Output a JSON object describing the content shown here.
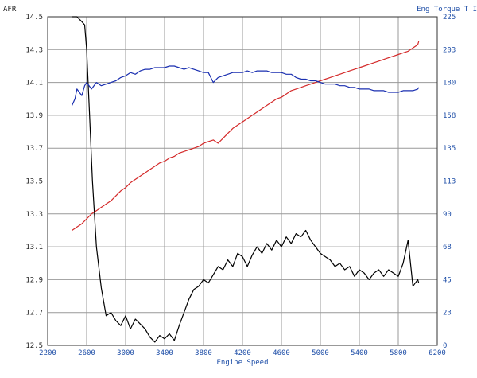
{
  "chart_data": {
    "type": "line",
    "xlabel": "Engine Speed",
    "ylabel_left": "AFR",
    "ylabel_right": "Eng Torque T I",
    "xlim": [
      2200,
      6200
    ],
    "ylim_left": [
      12.5,
      14.5
    ],
    "ylim_right": [
      0,
      225
    ],
    "grid": true,
    "x_ticks": [
      "2200",
      "2600",
      "3000",
      "3400",
      "3800",
      "4200",
      "4600",
      "5000",
      "5400",
      "5800",
      "6200"
    ],
    "y_left_ticks": [
      "12.5",
      "12.7",
      "12.9",
      "13.1",
      "13.3",
      "13.5",
      "13.7",
      "13.9",
      "14.1",
      "14.3",
      "14.5"
    ],
    "y_right_ticks": [
      "0",
      "23",
      "45",
      "68",
      "90",
      "113",
      "135",
      "158",
      "180",
      "203",
      "225"
    ],
    "series": [
      {
        "color": "#000000",
        "axis": "left",
        "x": [
          2450,
          2500,
          2550,
          2580,
          2600,
          2630,
          2660,
          2700,
          2750,
          2800,
          2850,
          2900,
          2950,
          3000,
          3050,
          3100,
          3150,
          3200,
          3250,
          3300,
          3350,
          3400,
          3450,
          3500,
          3550,
          3600,
          3650,
          3700,
          3750,
          3800,
          3850,
          3900,
          3950,
          4000,
          4050,
          4100,
          4150,
          4200,
          4250,
          4300,
          4350,
          4400,
          4450,
          4500,
          4550,
          4600,
          4650,
          4700,
          4750,
          4800,
          4850,
          4900,
          4950,
          5000,
          5050,
          5100,
          5150,
          5200,
          5250,
          5300,
          5350,
          5400,
          5450,
          5500,
          5550,
          5600,
          5650,
          5700,
          5750,
          5800,
          5850,
          5900,
          5950,
          6000,
          6010
        ],
        "y": [
          14.5,
          14.5,
          14.47,
          14.45,
          14.3,
          13.9,
          13.5,
          13.1,
          12.85,
          12.68,
          12.7,
          12.65,
          12.62,
          12.68,
          12.6,
          12.66,
          12.63,
          12.6,
          12.55,
          12.52,
          12.56,
          12.54,
          12.57,
          12.53,
          12.62,
          12.7,
          12.78,
          12.84,
          12.86,
          12.9,
          12.88,
          12.93,
          12.98,
          12.96,
          13.02,
          12.98,
          13.06,
          13.04,
          12.98,
          13.05,
          13.1,
          13.06,
          13.12,
          13.08,
          13.14,
          13.1,
          13.16,
          13.12,
          13.18,
          13.16,
          13.2,
          13.14,
          13.1,
          13.06,
          13.04,
          13.02,
          12.98,
          13.0,
          12.96,
          12.98,
          12.92,
          12.96,
          12.94,
          12.9,
          12.94,
          12.96,
          12.92,
          12.96,
          12.94,
          12.92,
          13.0,
          13.14,
          12.86,
          12.9,
          12.88
        ]
      },
      {
        "color": "#d42a2a",
        "axis": "left",
        "x": [
          2450,
          2500,
          2550,
          2600,
          2650,
          2700,
          2750,
          2800,
          2850,
          2900,
          2950,
          3000,
          3050,
          3100,
          3150,
          3200,
          3250,
          3300,
          3350,
          3400,
          3450,
          3500,
          3550,
          3600,
          3650,
          3700,
          3750,
          3800,
          3850,
          3900,
          3950,
          4000,
          4050,
          4100,
          4150,
          4200,
          4250,
          4300,
          4350,
          4400,
          4450,
          4500,
          4550,
          4600,
          4650,
          4700,
          4750,
          4800,
          4850,
          4900,
          4950,
          5000,
          5050,
          5100,
          5150,
          5200,
          5250,
          5300,
          5350,
          5400,
          5450,
          5500,
          5550,
          5600,
          5650,
          5700,
          5750,
          5800,
          5850,
          5900,
          5950,
          6000,
          6010
        ],
        "y": [
          13.2,
          13.22,
          13.24,
          13.27,
          13.3,
          13.32,
          13.34,
          13.36,
          13.38,
          13.41,
          13.44,
          13.46,
          13.49,
          13.51,
          13.53,
          13.55,
          13.57,
          13.59,
          13.61,
          13.62,
          13.64,
          13.65,
          13.67,
          13.68,
          13.69,
          13.7,
          13.71,
          13.73,
          13.74,
          13.75,
          13.73,
          13.76,
          13.79,
          13.82,
          13.84,
          13.86,
          13.88,
          13.9,
          13.92,
          13.94,
          13.96,
          13.98,
          14.0,
          14.01,
          14.03,
          14.05,
          14.06,
          14.07,
          14.08,
          14.09,
          14.1,
          14.11,
          14.12,
          14.13,
          14.14,
          14.15,
          14.16,
          14.17,
          14.18,
          14.19,
          14.2,
          14.21,
          14.22,
          14.23,
          14.24,
          14.25,
          14.26,
          14.27,
          14.28,
          14.29,
          14.31,
          14.33,
          14.35
        ]
      },
      {
        "color": "#1a2fb0",
        "axis": "left",
        "x": [
          2450,
          2480,
          2500,
          2550,
          2580,
          2600,
          2650,
          2700,
          2750,
          2800,
          2850,
          2900,
          2950,
          3000,
          3050,
          3100,
          3150,
          3200,
          3250,
          3300,
          3350,
          3400,
          3450,
          3500,
          3550,
          3600,
          3650,
          3700,
          3750,
          3800,
          3850,
          3900,
          3950,
          4000,
          4050,
          4100,
          4150,
          4200,
          4250,
          4300,
          4350,
          4400,
          4450,
          4500,
          4550,
          4600,
          4650,
          4700,
          4750,
          4800,
          4850,
          4900,
          4950,
          5000,
          5050,
          5100,
          5150,
          5200,
          5250,
          5300,
          5350,
          5400,
          5450,
          5500,
          5550,
          5600,
          5650,
          5700,
          5750,
          5800,
          5850,
          5900,
          5950,
          6000,
          6010
        ],
        "y": [
          13.96,
          14.0,
          14.06,
          14.02,
          14.08,
          14.1,
          14.06,
          14.1,
          14.08,
          14.09,
          14.1,
          14.11,
          14.13,
          14.14,
          14.16,
          14.15,
          14.17,
          14.18,
          14.18,
          14.19,
          14.19,
          14.19,
          14.2,
          14.2,
          14.19,
          14.18,
          14.19,
          14.18,
          14.17,
          14.16,
          14.16,
          14.1,
          14.13,
          14.14,
          14.15,
          14.16,
          14.16,
          14.16,
          14.17,
          14.16,
          14.17,
          14.17,
          14.17,
          14.16,
          14.16,
          14.16,
          14.15,
          14.15,
          14.13,
          14.12,
          14.12,
          14.11,
          14.11,
          14.1,
          14.09,
          14.09,
          14.09,
          14.08,
          14.08,
          14.07,
          14.07,
          14.06,
          14.06,
          14.06,
          14.05,
          14.05,
          14.05,
          14.04,
          14.04,
          14.04,
          14.05,
          14.05,
          14.05,
          14.06,
          14.07
        ]
      }
    ]
  }
}
